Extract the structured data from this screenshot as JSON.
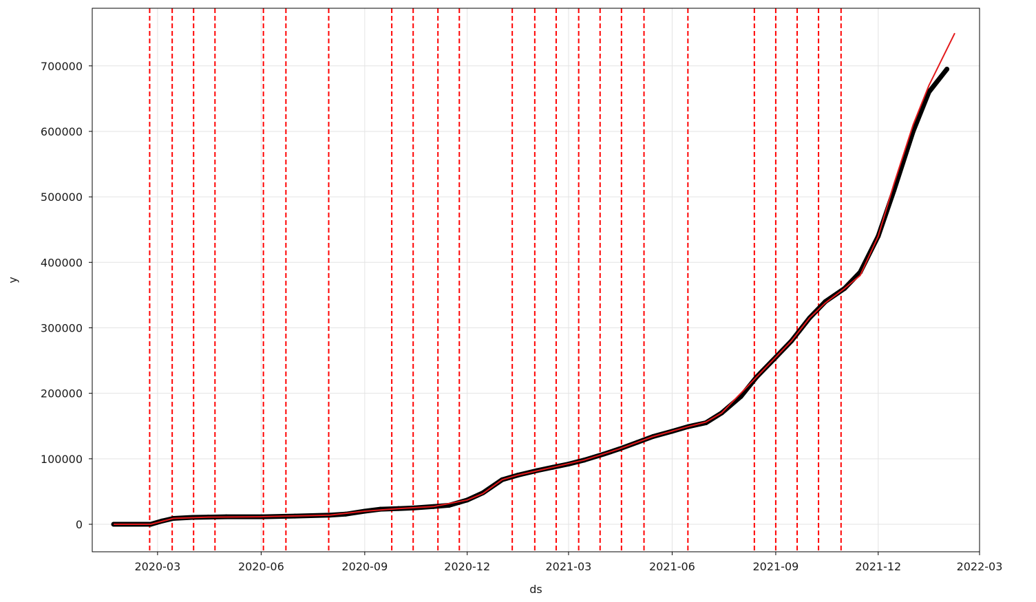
{
  "chart_data": {
    "type": "line",
    "title": "",
    "xlabel": "ds",
    "ylabel": "y",
    "x_ticks": [
      "2020-03",
      "2020-06",
      "2020-09",
      "2020-12",
      "2021-03",
      "2021-06",
      "2021-09",
      "2021-12",
      "2022-03"
    ],
    "y_ticks": [
      0,
      100000,
      200000,
      300000,
      400000,
      500000,
      600000,
      700000
    ],
    "y_tick_labels": [
      "0",
      "100000",
      "200000",
      "300000",
      "400000",
      "500000",
      "600000",
      "700000"
    ],
    "xlim": [
      "2020-01-03",
      "2022-03-01"
    ],
    "ylim": [
      -42000,
      788000
    ],
    "grid": true,
    "series": [
      {
        "role": "observed",
        "style": "points",
        "color": "#000000",
        "x": [
          "2020-01-22",
          "2020-02-01",
          "2020-02-15",
          "2020-02-24",
          "2020-03-05",
          "2020-03-15",
          "2020-04-01",
          "2020-04-15",
          "2020-05-01",
          "2020-06-01",
          "2020-07-01",
          "2020-08-01",
          "2020-08-15",
          "2020-09-01",
          "2020-09-15",
          "2020-10-01",
          "2020-10-15",
          "2020-11-01",
          "2020-11-15",
          "2020-12-01",
          "2020-12-15",
          "2021-01-01",
          "2021-01-15",
          "2021-02-01",
          "2021-02-15",
          "2021-03-01",
          "2021-03-15",
          "2021-04-01",
          "2021-04-15",
          "2021-05-01",
          "2021-05-15",
          "2021-06-01",
          "2021-06-15",
          "2021-07-01",
          "2021-07-15",
          "2021-08-01",
          "2021-08-15",
          "2021-09-01",
          "2021-09-15",
          "2021-10-01",
          "2021-10-15",
          "2021-11-01",
          "2021-11-15",
          "2021-12-01",
          "2021-12-15",
          "2022-01-01",
          "2022-01-15",
          "2022-01-31"
        ],
        "y": [
          0,
          0,
          0,
          0,
          5000,
          9000,
          10500,
          11000,
          11500,
          11500,
          12500,
          14000,
          15500,
          20000,
          23000,
          24000,
          25000,
          27000,
          29000,
          37000,
          48000,
          68000,
          75000,
          82000,
          87000,
          92000,
          98000,
          107000,
          115000,
          125000,
          134000,
          142000,
          149000,
          155000,
          170000,
          195000,
          225000,
          255000,
          280000,
          315000,
          340000,
          360000,
          385000,
          440000,
          510000,
          600000,
          660000,
          695000
        ]
      },
      {
        "role": "forecast",
        "style": "line",
        "color": "#e31a1c",
        "x": [
          "2020-01-22",
          "2020-02-24",
          "2020-03-15",
          "2020-04-15",
          "2020-06-01",
          "2020-08-01",
          "2020-09-01",
          "2020-10-01",
          "2020-11-01",
          "2020-12-01",
          "2020-12-15",
          "2021-01-01",
          "2021-01-15",
          "2021-02-15",
          "2021-03-15",
          "2021-04-15",
          "2021-05-15",
          "2021-06-15",
          "2021-07-01",
          "2021-07-15",
          "2021-08-15",
          "2021-09-15",
          "2021-10-01",
          "2021-10-15",
          "2021-11-01",
          "2021-11-15",
          "2021-12-01",
          "2021-12-15",
          "2022-01-01",
          "2022-01-15",
          "2022-02-07"
        ],
        "y": [
          0,
          0,
          9000,
          11000,
          11500,
          14000,
          20000,
          24000,
          27000,
          37000,
          47000,
          68000,
          75000,
          87000,
          98000,
          115000,
          134000,
          149000,
          156000,
          170000,
          225000,
          280000,
          315000,
          338000,
          360000,
          380000,
          440000,
          520000,
          610000,
          670000,
          750000
        ]
      }
    ],
    "changepoints": [
      "2020-02-23",
      "2020-03-14",
      "2020-04-02",
      "2020-04-21",
      "2020-06-03",
      "2020-06-23",
      "2020-07-31",
      "2020-09-25",
      "2020-10-14",
      "2020-11-05",
      "2020-11-24",
      "2021-01-10",
      "2021-01-30",
      "2021-02-18",
      "2021-03-10",
      "2021-03-29",
      "2021-04-17",
      "2021-05-07",
      "2021-06-15",
      "2021-08-13",
      "2021-09-01",
      "2021-09-20",
      "2021-10-09",
      "2021-10-29"
    ],
    "changepoint_style": {
      "color": "#ff0000",
      "dashed": true
    }
  }
}
